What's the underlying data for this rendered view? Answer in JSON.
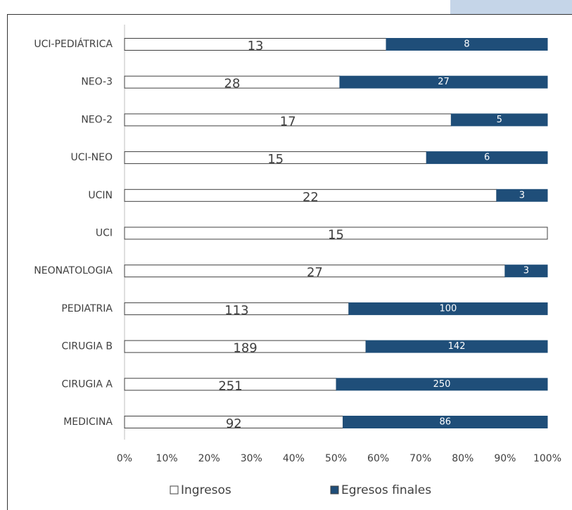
{
  "chart_data": {
    "type": "bar100h",
    "categories": [
      "UCI-PEDIÁTRICA",
      "NEO-3",
      "NEO-2",
      "UCI-NEO",
      "UCIN",
      "UCI",
      "NEONATOLOGIA",
      "PEDIATRIA",
      "CIRUGIA B",
      "CIRUGIA A",
      "MEDICINA"
    ],
    "series": [
      {
        "name": "Ingresos",
        "color": "#ffffff",
        "values": [
          13,
          28,
          17,
          15,
          22,
          15,
          27,
          113,
          189,
          251,
          92
        ]
      },
      {
        "name": "Egresos finales",
        "color": "#1f4e79",
        "values": [
          8,
          27,
          5,
          6,
          3,
          0,
          3,
          100,
          142,
          250,
          86
        ]
      }
    ],
    "xlim": [
      0,
      100
    ],
    "xticks": [
      {
        "value": 0,
        "label": "0%"
      },
      {
        "value": 10,
        "label": "10%"
      },
      {
        "value": 20,
        "label": "20%"
      },
      {
        "value": 30,
        "label": "30%"
      },
      {
        "value": 40,
        "label": "40%"
      },
      {
        "value": 50,
        "label": "50%"
      },
      {
        "value": 60,
        "label": "60%"
      },
      {
        "value": 70,
        "label": "70%"
      },
      {
        "value": 80,
        "label": "80%"
      },
      {
        "value": 90,
        "label": "90%"
      },
      {
        "value": 100,
        "label": "100%"
      }
    ],
    "legend": "bottom"
  }
}
